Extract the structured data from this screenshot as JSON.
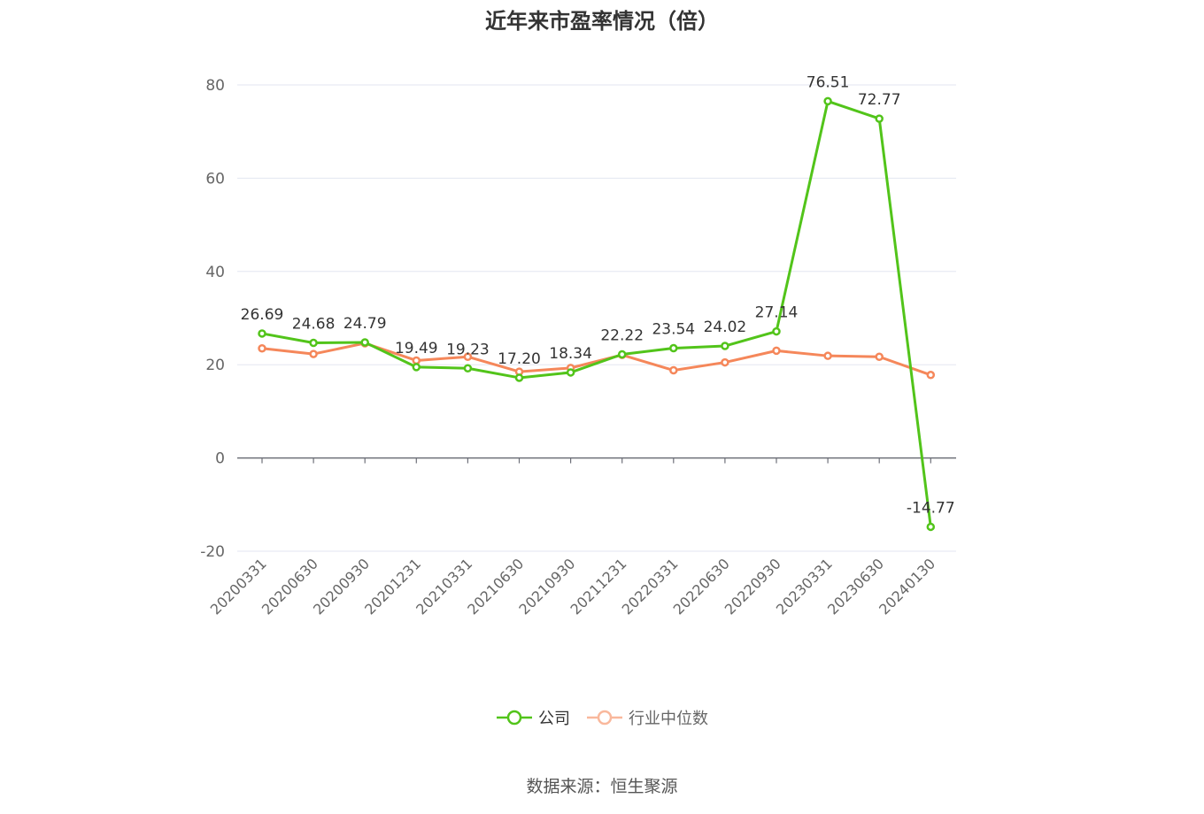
{
  "chart_data": {
    "type": "line",
    "title": "近年来市盈率情况（倍）",
    "categories": [
      "20200331",
      "20200630",
      "20200930",
      "20201231",
      "20210331",
      "20210630",
      "20210930",
      "20211231",
      "20220331",
      "20220630",
      "20220930",
      "20230331",
      "20230630",
      "20240130"
    ],
    "series": [
      {
        "name": "公司",
        "color": "#52c41a",
        "values": [
          26.69,
          24.68,
          24.79,
          19.49,
          19.23,
          17.2,
          18.34,
          22.22,
          23.54,
          24.02,
          27.14,
          76.51,
          72.77,
          -14.77
        ],
        "labels": [
          "26.69",
          "24.68",
          "24.79",
          "19.49",
          "19.23",
          "17.20",
          "18.34",
          "22.22",
          "23.54",
          "24.02",
          "27.14",
          "76.51",
          "72.77",
          "-14.77"
        ]
      },
      {
        "name": "行业中位数",
        "color": "#f5875a",
        "values": [
          23.5,
          22.3,
          24.6,
          20.9,
          21.7,
          18.5,
          19.3,
          22.1,
          18.8,
          20.5,
          23.0,
          21.9,
          21.7,
          17.8
        ]
      }
    ],
    "y_ticks": [
      "80",
      "60",
      "40",
      "20",
      "0",
      "-20"
    ],
    "y_tick_values": [
      80,
      60,
      40,
      20,
      0,
      -20
    ],
    "ylim": [
      -20,
      80
    ],
    "grid": true,
    "legend": "bottom-center"
  },
  "source": "数据来源：恒生聚源"
}
